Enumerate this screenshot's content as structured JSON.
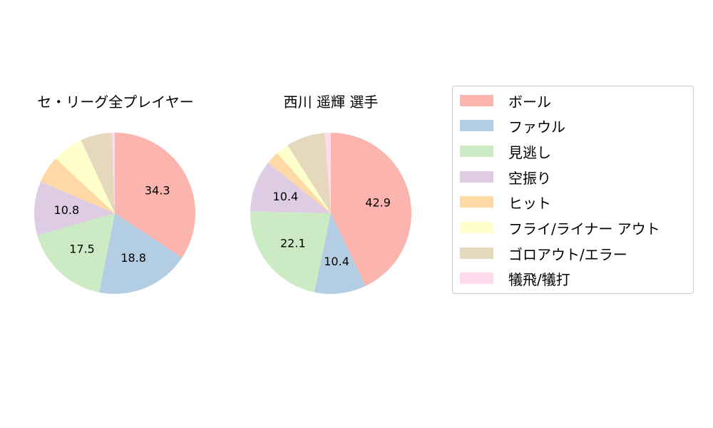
{
  "chart_data": [
    {
      "type": "pie",
      "title": "セ・リーグ全プレイヤー",
      "categories": [
        "ボール",
        "ファウル",
        "見逃し",
        "空振り",
        "ヒット",
        "フライ/ライナー アウト",
        "ゴロアウト/エラー",
        "犠飛/犠打"
      ],
      "values": [
        34.3,
        18.8,
        17.5,
        10.8,
        5.5,
        6.2,
        6.3,
        0.6
      ],
      "labels_shown": [
        "34.3",
        "18.8",
        "17.5",
        "10.8",
        "",
        "",
        "",
        ""
      ],
      "start_angle": 90,
      "direction": "clockwise"
    },
    {
      "type": "pie",
      "title": "西川 遥輝  選手",
      "categories": [
        "ボール",
        "ファウル",
        "見逃し",
        "空振り",
        "ヒット",
        "フライ/ライナー アウト",
        "ゴロアウト/エラー",
        "犠飛/犠打"
      ],
      "values": [
        42.9,
        10.4,
        22.1,
        10.4,
        2.6,
        2.6,
        7.8,
        1.2
      ],
      "labels_shown": [
        "42.9",
        "10.4",
        "22.1",
        "10.4",
        "",
        "",
        "",
        ""
      ],
      "start_angle": 90,
      "direction": "clockwise"
    }
  ],
  "titles": {
    "left": "セ・リーグ全プレイヤー",
    "right": "西川 遥輝  選手"
  },
  "legend": {
    "position": "right",
    "items": [
      {
        "label": "ボール",
        "color": "#fbb4ae"
      },
      {
        "label": "ファウル",
        "color": "#b3cde3"
      },
      {
        "label": "見逃し",
        "color": "#ccebc5"
      },
      {
        "label": "空振り",
        "color": "#decbe4"
      },
      {
        "label": "ヒット",
        "color": "#fed9a6"
      },
      {
        "label": "フライ/ライナー アウト",
        "color": "#ffffcc"
      },
      {
        "label": "ゴロアウト/エラー",
        "color": "#e5d8bd"
      },
      {
        "label": "犠飛/犠打",
        "color": "#fddaec"
      }
    ]
  }
}
